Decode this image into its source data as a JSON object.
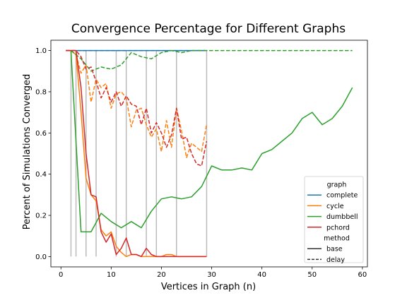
{
  "chart_data": {
    "type": "line",
    "title": "Convergence Percentage for Different Graphs",
    "xlabel": "Vertices in Graph (n)",
    "ylabel": "Percent of Simulations Converged",
    "xlim": [
      -2,
      61
    ],
    "ylim": [
      -0.05,
      1.05
    ],
    "xticks": [
      0,
      10,
      20,
      30,
      40,
      50,
      60
    ],
    "yticks": [
      0.0,
      0.2,
      0.4,
      0.6,
      0.8,
      1.0
    ],
    "ytick_labels": [
      "0.0",
      "0.2",
      "0.4",
      "0.6",
      "0.8",
      "1.0"
    ],
    "grid": false,
    "legend": {
      "placement": "lower-right",
      "graph_heading": "graph",
      "method_heading": "method",
      "graph_entries": [
        {
          "name": "complete",
          "color": "#1f77b4"
        },
        {
          "name": "cycle",
          "color": "#ff7f0e"
        },
        {
          "name": "dumbbell",
          "color": "#2ca02c"
        },
        {
          "name": "pchord",
          "color": "#d62728"
        }
      ],
      "method_entries": [
        {
          "name": "base",
          "style": "solid"
        },
        {
          "name": "delay",
          "style": "dashed"
        }
      ]
    },
    "error_bars": {
      "color": "#bbbbbb",
      "x": [
        2,
        3,
        5,
        7,
        11,
        13,
        17,
        19,
        23,
        29
      ],
      "y_low": [
        0.0,
        0.0,
        0.0,
        0.0,
        0.0,
        0.0,
        0.0,
        0.0,
        0.0,
        0.0
      ],
      "y_high": [
        1.0,
        1.0,
        1.0,
        1.0,
        1.0,
        1.0,
        1.0,
        1.0,
        1.0,
        1.0
      ]
    },
    "series": [
      {
        "graph": "complete",
        "method": "base",
        "color": "#1f77b4",
        "x": [
          1,
          2,
          3,
          4,
          5,
          6,
          7,
          8,
          9,
          10,
          11,
          12,
          13,
          14,
          15,
          16,
          17,
          18,
          19,
          20,
          21,
          22,
          23,
          24,
          25,
          26,
          27,
          28,
          29
        ],
        "y": [
          1,
          1,
          1,
          1,
          1,
          1,
          1,
          1,
          1,
          1,
          1,
          1,
          1,
          1,
          1,
          1,
          1,
          1,
          1,
          1,
          1,
          1,
          1,
          1,
          1,
          1,
          1,
          1,
          1
        ]
      },
      {
        "graph": "complete",
        "method": "delay",
        "color": "#1f77b4",
        "x": [
          1,
          2,
          3,
          4,
          5,
          6,
          7,
          8,
          9,
          10,
          11,
          12,
          13,
          14,
          15,
          16,
          17,
          18,
          19,
          20,
          21,
          22,
          23,
          24,
          25,
          26,
          27,
          28,
          29
        ],
        "y": [
          1,
          1,
          1,
          1,
          1,
          1,
          1,
          1,
          1,
          1,
          1,
          1,
          1,
          1,
          1,
          1,
          1,
          1,
          1,
          1,
          1,
          1,
          1,
          1,
          1,
          1,
          1,
          1,
          1
        ]
      },
      {
        "graph": "cycle",
        "method": "base",
        "color": "#ff7f0e",
        "x": [
          1,
          2,
          3,
          4,
          5,
          6,
          7,
          8,
          9,
          10,
          11,
          12,
          13,
          14,
          15,
          16,
          17,
          18,
          19,
          20,
          21,
          22,
          23,
          24,
          25,
          26,
          27,
          28,
          29
        ],
        "y": [
          1.0,
          1.0,
          0.98,
          0.7,
          0.38,
          0.3,
          0.27,
          0.13,
          0.1,
          0.12,
          0.05,
          0.02,
          0.0,
          0.01,
          0.01,
          0.0,
          0.0,
          0.0,
          0.0,
          0.0,
          0.01,
          0.01,
          0.0,
          0.0,
          0.0,
          0.0,
          0.0,
          0.0,
          0.0
        ]
      },
      {
        "graph": "cycle",
        "method": "delay",
        "color": "#ff7f0e",
        "x": [
          1,
          2,
          3,
          4,
          5,
          6,
          7,
          8,
          9,
          10,
          11,
          12,
          13,
          14,
          15,
          16,
          17,
          18,
          19,
          20,
          21,
          22,
          23,
          24,
          25,
          26,
          27,
          28,
          29
        ],
        "y": [
          1.0,
          1.0,
          0.98,
          0.89,
          0.93,
          0.75,
          0.86,
          0.82,
          0.84,
          0.72,
          0.79,
          0.8,
          0.77,
          0.63,
          0.71,
          0.72,
          0.64,
          0.58,
          0.62,
          0.51,
          0.66,
          0.53,
          0.72,
          0.61,
          0.48,
          0.55,
          0.53,
          0.51,
          0.64
        ]
      },
      {
        "graph": "dumbbell",
        "method": "base",
        "color": "#2ca02c",
        "x": [
          2,
          4,
          6,
          8,
          10,
          12,
          14,
          16,
          18,
          20,
          22,
          24,
          26,
          28,
          30,
          32,
          34,
          36,
          38,
          40,
          42,
          44,
          46,
          48,
          50,
          52,
          54,
          56,
          58
        ],
        "y": [
          1.0,
          0.12,
          0.12,
          0.21,
          0.17,
          0.14,
          0.17,
          0.14,
          0.22,
          0.28,
          0.29,
          0.28,
          0.29,
          0.34,
          0.44,
          0.42,
          0.42,
          0.43,
          0.42,
          0.5,
          0.52,
          0.56,
          0.6,
          0.67,
          0.7,
          0.64,
          0.67,
          0.73,
          0.82
        ]
      },
      {
        "graph": "dumbbell",
        "method": "delay",
        "color": "#2ca02c",
        "x": [
          2,
          4,
          6,
          8,
          10,
          12,
          14,
          16,
          18,
          20,
          22,
          24,
          26,
          28,
          30,
          32,
          34,
          36,
          38,
          40,
          42,
          44,
          46,
          48,
          50,
          52,
          54,
          56,
          58
        ],
        "y": [
          1.0,
          0.96,
          0.9,
          0.92,
          0.91,
          0.93,
          0.99,
          0.97,
          0.96,
          0.99,
          1.0,
          0.99,
          1.0,
          1.0,
          1.0,
          1.0,
          1.0,
          1.0,
          1.0,
          1.0,
          1.0,
          1.0,
          1.0,
          1.0,
          1.0,
          1.0,
          1.0,
          1.0,
          1.0
        ]
      },
      {
        "graph": "pchord",
        "method": "base",
        "color": "#d62728",
        "x": [
          1,
          2,
          3,
          4,
          5,
          6,
          7,
          8,
          9,
          10,
          11,
          12,
          13,
          14,
          15,
          16,
          17,
          18,
          19,
          20,
          21,
          22,
          23,
          24,
          25,
          26,
          27,
          28,
          29
        ],
        "y": [
          1.0,
          1.0,
          1.0,
          0.82,
          0.5,
          0.3,
          0.29,
          0.12,
          0.07,
          0.11,
          0.01,
          0.04,
          0.09,
          0.01,
          0.01,
          0.0,
          0.04,
          0.01,
          0.0,
          0.0,
          0.0,
          0.0,
          0.0,
          0.0,
          0.0,
          0.0,
          0.0,
          0.0,
          0.0
        ]
      },
      {
        "graph": "pchord",
        "method": "delay",
        "color": "#d62728",
        "x": [
          1,
          2,
          3,
          4,
          5,
          6,
          7,
          8,
          9,
          10,
          11,
          12,
          13,
          14,
          15,
          16,
          17,
          18,
          19,
          20,
          21,
          22,
          23,
          24,
          25,
          26,
          27,
          28,
          29
        ],
        "y": [
          1.0,
          1.0,
          1.0,
          0.97,
          0.91,
          0.92,
          0.85,
          0.77,
          0.82,
          0.75,
          0.8,
          0.73,
          0.78,
          0.74,
          0.73,
          0.64,
          0.72,
          0.6,
          0.65,
          0.6,
          0.53,
          0.59,
          0.72,
          0.57,
          0.58,
          0.5,
          0.45,
          0.44,
          0.56
        ]
      }
    ]
  }
}
